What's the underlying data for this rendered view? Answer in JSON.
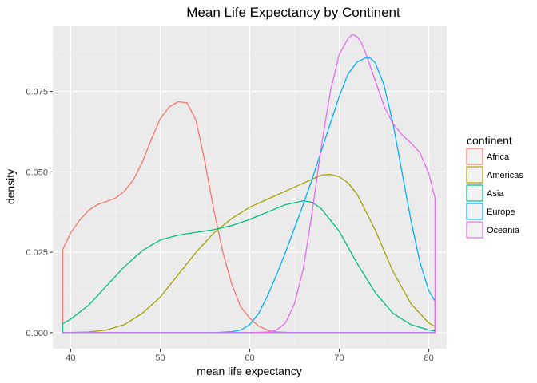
{
  "chart_data": {
    "type": "line",
    "title": "Mean Life Expectancy by Continent",
    "xlabel": "mean life expectancy",
    "ylabel": "density",
    "xlim": [
      38,
      82
    ],
    "ylim": [
      -0.005,
      0.0955
    ],
    "x_ticks": [
      40,
      50,
      60,
      70,
      80
    ],
    "x_tick_labels": [
      "40",
      "50",
      "60",
      "70",
      "80"
    ],
    "y_ticks": [
      0.0,
      0.025,
      0.05,
      0.075
    ],
    "y_tick_labels": [
      "0.000",
      "0.025",
      "0.050",
      "0.075"
    ],
    "grid": true,
    "panel_background": "#ebebeb",
    "legend_title": "continent",
    "legend_position": "right",
    "series": [
      {
        "name": "Africa",
        "color": "#F8766D",
        "x": [
          39.1,
          40,
          41,
          42,
          43,
          44,
          45,
          46,
          47,
          48,
          49,
          50,
          51,
          52,
          53,
          54,
          55,
          56,
          57,
          58,
          59,
          60,
          61,
          62,
          63,
          64,
          65,
          66,
          67,
          68,
          70,
          75,
          80.7
        ],
        "y": [
          0.0258,
          0.031,
          0.035,
          0.038,
          0.0398,
          0.0408,
          0.0418,
          0.044,
          0.0475,
          0.053,
          0.06,
          0.0665,
          0.0702,
          0.0718,
          0.0715,
          0.066,
          0.053,
          0.038,
          0.025,
          0.015,
          0.008,
          0.0045,
          0.002,
          0.0008,
          0.0002,
          0.0001,
          0.0,
          0.0,
          0.0,
          0.0,
          0.0,
          0.0,
          0.0
        ]
      },
      {
        "name": "Americas",
        "color": "#A3A500",
        "x": [
          39.1,
          42,
          44,
          46,
          48,
          50,
          52,
          54,
          56,
          58,
          60,
          62,
          64,
          66,
          68,
          69,
          70,
          71,
          72,
          74,
          76,
          78,
          80,
          80.7
        ],
        "y": [
          0.0,
          0.0002,
          0.0008,
          0.0025,
          0.006,
          0.011,
          0.018,
          0.025,
          0.031,
          0.0355,
          0.039,
          0.0415,
          0.044,
          0.0465,
          0.049,
          0.0492,
          0.0485,
          0.0465,
          0.043,
          0.032,
          0.019,
          0.009,
          0.003,
          0.0019
        ]
      },
      {
        "name": "Asia",
        "color": "#00BF7D",
        "x": [
          39.1,
          40,
          42,
          44,
          46,
          48,
          50,
          52,
          54,
          56,
          58,
          60,
          62,
          64,
          66,
          67,
          68,
          70,
          72,
          74,
          76,
          78,
          80,
          80.7
        ],
        "y": [
          0.0028,
          0.0042,
          0.0085,
          0.0145,
          0.0205,
          0.0255,
          0.0288,
          0.0303,
          0.0312,
          0.032,
          0.0333,
          0.0352,
          0.0375,
          0.0398,
          0.041,
          0.0405,
          0.0385,
          0.0315,
          0.0215,
          0.0125,
          0.006,
          0.0025,
          0.0008,
          0.0005
        ]
      },
      {
        "name": "Europe",
        "color": "#00B0F6",
        "x": [
          39.1,
          56,
          58,
          59,
          60,
          61,
          62,
          63,
          64,
          65,
          66,
          67,
          68,
          69,
          70,
          71,
          72,
          73,
          73.5,
          74,
          75,
          76,
          77,
          78,
          79,
          80,
          80.7
        ],
        "y": [
          0.0,
          0.0,
          0.0003,
          0.0008,
          0.0025,
          0.006,
          0.0115,
          0.018,
          0.025,
          0.0325,
          0.04,
          0.048,
          0.0565,
          0.065,
          0.0735,
          0.0805,
          0.0842,
          0.0855,
          0.0853,
          0.084,
          0.077,
          0.065,
          0.05,
          0.035,
          0.022,
          0.013,
          0.0098
        ]
      },
      {
        "name": "Oceania",
        "color": "#E76BF3",
        "x": [
          39.1,
          60,
          62,
          63,
          64,
          65,
          66,
          67,
          68,
          69,
          70,
          71,
          71.5,
          72,
          72.5,
          73,
          74,
          75,
          76,
          77,
          78,
          79,
          80,
          80.7
        ],
        "y": [
          0.0,
          0.0,
          0.0002,
          0.0008,
          0.003,
          0.009,
          0.02,
          0.038,
          0.058,
          0.075,
          0.0865,
          0.0915,
          0.0928,
          0.092,
          0.09,
          0.0865,
          0.0785,
          0.0705,
          0.065,
          0.0615,
          0.059,
          0.056,
          0.0495,
          0.0418
        ]
      }
    ]
  }
}
